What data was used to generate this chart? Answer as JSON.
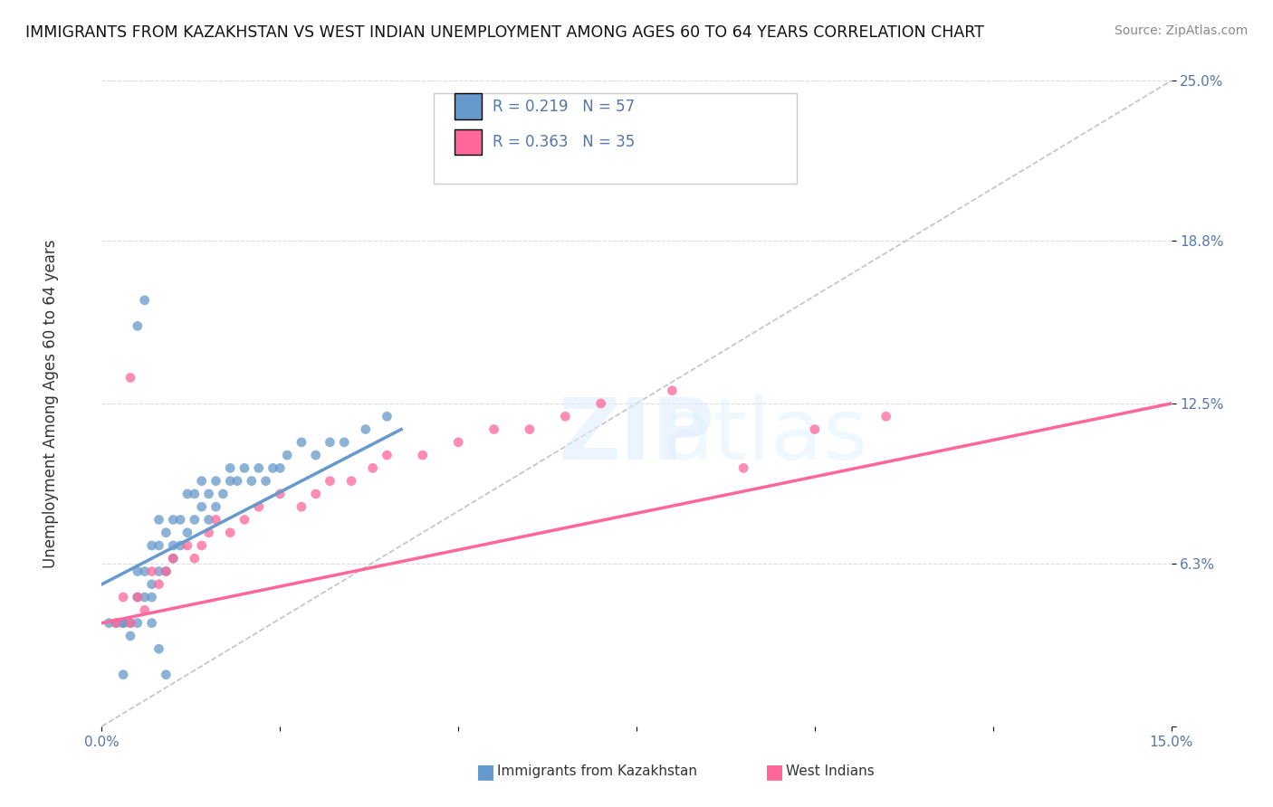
{
  "title": "IMMIGRANTS FROM KAZAKHSTAN VS WEST INDIAN UNEMPLOYMENT AMONG AGES 60 TO 64 YEARS CORRELATION CHART",
  "source": "Source: ZipAtlas.com",
  "ylabel": "Unemployment Among Ages 60 to 64 years",
  "xlabel": "",
  "xlim": [
    0.0,
    0.15
  ],
  "ylim": [
    0.0,
    0.25
  ],
  "xticks": [
    0.0,
    0.025,
    0.05,
    0.075,
    0.1,
    0.125,
    0.15
  ],
  "xticklabels": [
    "0.0%",
    "",
    "",
    "",
    "",
    "",
    "15.0%"
  ],
  "ytick_positions": [
    0.0,
    0.063,
    0.125,
    0.188,
    0.25
  ],
  "ytick_labels": [
    "",
    "6.3%",
    "12.5%",
    "18.8%",
    "25.0%"
  ],
  "legend_R1": "R = 0.219",
  "legend_N1": "N = 57",
  "legend_R2": "R = 0.363",
  "legend_N2": "N = 35",
  "color_blue": "#6699CC",
  "color_pink": "#FF6699",
  "color_blue_light": "#99BBDD",
  "color_pink_light": "#FFAABB",
  "color_axis_labels": "#5577AA",
  "watermark_text": "ZIPatlas",
  "watermark_color": "#CCDDEE",
  "background_color": "#FFFFFF",
  "grid_color": "#DDDDDD",
  "blue_scatter_x": [
    0.001,
    0.002,
    0.003,
    0.003,
    0.004,
    0.004,
    0.005,
    0.005,
    0.005,
    0.006,
    0.006,
    0.007,
    0.007,
    0.007,
    0.008,
    0.008,
    0.008,
    0.009,
    0.009,
    0.01,
    0.01,
    0.01,
    0.011,
    0.011,
    0.012,
    0.012,
    0.013,
    0.013,
    0.014,
    0.014,
    0.015,
    0.015,
    0.016,
    0.016,
    0.017,
    0.018,
    0.018,
    0.019,
    0.02,
    0.021,
    0.022,
    0.023,
    0.024,
    0.025,
    0.026,
    0.028,
    0.03,
    0.032,
    0.034,
    0.037,
    0.04,
    0.005,
    0.006,
    0.007,
    0.008,
    0.009,
    0.003
  ],
  "blue_scatter_y": [
    0.04,
    0.04,
    0.04,
    0.04,
    0.035,
    0.04,
    0.04,
    0.05,
    0.06,
    0.05,
    0.06,
    0.05,
    0.055,
    0.07,
    0.06,
    0.07,
    0.08,
    0.06,
    0.075,
    0.07,
    0.065,
    0.08,
    0.07,
    0.08,
    0.075,
    0.09,
    0.08,
    0.09,
    0.085,
    0.095,
    0.08,
    0.09,
    0.085,
    0.095,
    0.09,
    0.095,
    0.1,
    0.095,
    0.1,
    0.095,
    0.1,
    0.095,
    0.1,
    0.1,
    0.105,
    0.11,
    0.105,
    0.11,
    0.11,
    0.115,
    0.12,
    0.155,
    0.165,
    0.04,
    0.03,
    0.02,
    0.02
  ],
  "pink_scatter_x": [
    0.002,
    0.003,
    0.004,
    0.005,
    0.006,
    0.007,
    0.008,
    0.009,
    0.01,
    0.012,
    0.013,
    0.014,
    0.015,
    0.016,
    0.018,
    0.02,
    0.022,
    0.025,
    0.028,
    0.03,
    0.032,
    0.035,
    0.038,
    0.04,
    0.045,
    0.05,
    0.055,
    0.06,
    0.065,
    0.07,
    0.08,
    0.09,
    0.1,
    0.11,
    0.004
  ],
  "pink_scatter_y": [
    0.04,
    0.05,
    0.04,
    0.05,
    0.045,
    0.06,
    0.055,
    0.06,
    0.065,
    0.07,
    0.065,
    0.07,
    0.075,
    0.08,
    0.075,
    0.08,
    0.085,
    0.09,
    0.085,
    0.09,
    0.095,
    0.095,
    0.1,
    0.105,
    0.105,
    0.11,
    0.115,
    0.115,
    0.12,
    0.125,
    0.13,
    0.1,
    0.115,
    0.12,
    0.135
  ],
  "blue_trend_x": [
    0.0,
    0.042
  ],
  "blue_trend_y": [
    0.055,
    0.115
  ],
  "pink_trend_x": [
    0.0,
    0.15
  ],
  "pink_trend_y": [
    0.04,
    0.125
  ],
  "ref_line_x": [
    0.0,
    0.15
  ],
  "ref_line_y": [
    0.0,
    0.25
  ]
}
